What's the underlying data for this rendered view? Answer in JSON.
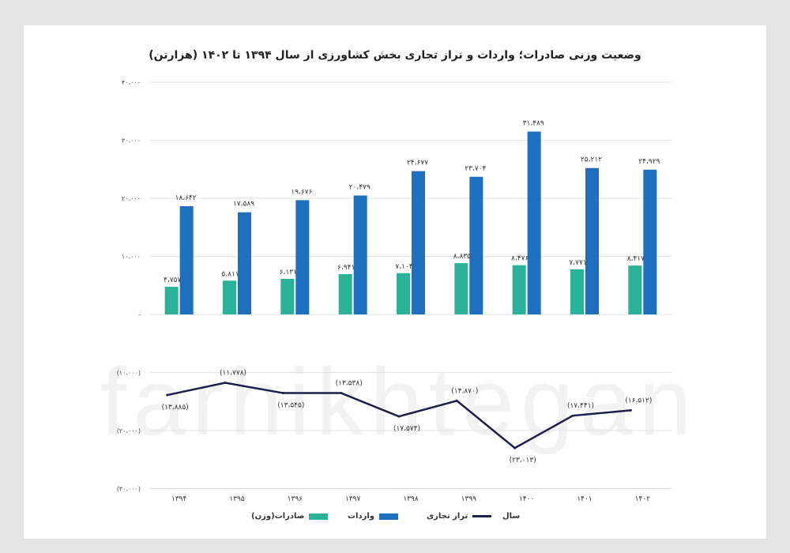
{
  "chart_data": {
    "type": "bar",
    "title": "وضعیت وزنی صادرات؛ واردات و تراز تجاری بخش کشاورزی از سال ۱۳۹۴ تا ۱۴۰۲ (هزارتن)",
    "categories": [
      "۱۳۹۴",
      "۱۳۹۵",
      "۱۳۹۶",
      "۱۳۹۷",
      "۱۳۹۸",
      "۱۳۹۹",
      "۱۴۰۰",
      "۱۴۰۱",
      "۱۴۰۲"
    ],
    "ylim": [
      -30000,
      40000
    ],
    "yticks": [
      40000,
      30000,
      20000,
      10000,
      0,
      -10000,
      -20000,
      -30000
    ],
    "ytick_labels": [
      "۴۰،۰۰۰",
      "۳۰،۰۰۰",
      "۲۰،۰۰۰",
      "۱۰،۰۰۰",
      "-",
      "(۱۰،۰۰۰)",
      "(۲۰،۰۰۰)",
      "(۳۰،۰۰۰)"
    ],
    "grid": true,
    "legend_position": "bottom",
    "x_legend_label": "سال",
    "series": [
      {
        "name": "صادرات(وزن)",
        "kind": "bar",
        "color": "#2bb39a",
        "values": [
          4757,
          5811,
          6131,
          6941,
          7104,
          8835,
          8476,
          7771,
          8417
        ],
        "labels": [
          "۴،۷۵۷",
          "۵،۸۱۱",
          "۶،۱۳۱",
          "۶،۹۴۱",
          "۷،۱۰۴",
          "۸،۸۳۵",
          "۸،۴۷۶",
          "۷،۷۷۱",
          "۸،۴۱۷"
        ]
      },
      {
        "name": "واردات",
        "kind": "bar",
        "color": "#1f6fbf",
        "values": [
          18642,
          17589,
          19676,
          20479,
          24677,
          23704,
          31489,
          25212,
          24929
        ],
        "labels": [
          "۱۸،۶۴۲",
          "۱۷،۵۸۹",
          "۱۹،۶۷۶",
          "۲۰،۴۷۹",
          "۲۴،۶۷۷",
          "۲۳،۷۰۴",
          "۳۱،۴۸۹",
          "۲۵،۲۱۲",
          "۲۴،۹۲۹"
        ]
      },
      {
        "name": "تراز تجاری",
        "kind": "line",
        "color": "#1c1f4a",
        "values": [
          -13885,
          -11778,
          -13545,
          -13538,
          -17574,
          -14870,
          -23013,
          -17441,
          -16512
        ],
        "labels": [
          "(۱۳،۸۸۵)",
          "(۱۱،۷۷۸)",
          "(۱۳،۵۴۵)",
          "(۱۳،۵۳۸)",
          "(۱۷،۵۷۴)",
          "(۱۴،۸۷۰)",
          "(۲۳،۰۱۳)",
          "(۱۷،۴۴۱)",
          "(۱۶،۵۱۲)"
        ]
      }
    ]
  },
  "watermark": "farhikhtegan"
}
